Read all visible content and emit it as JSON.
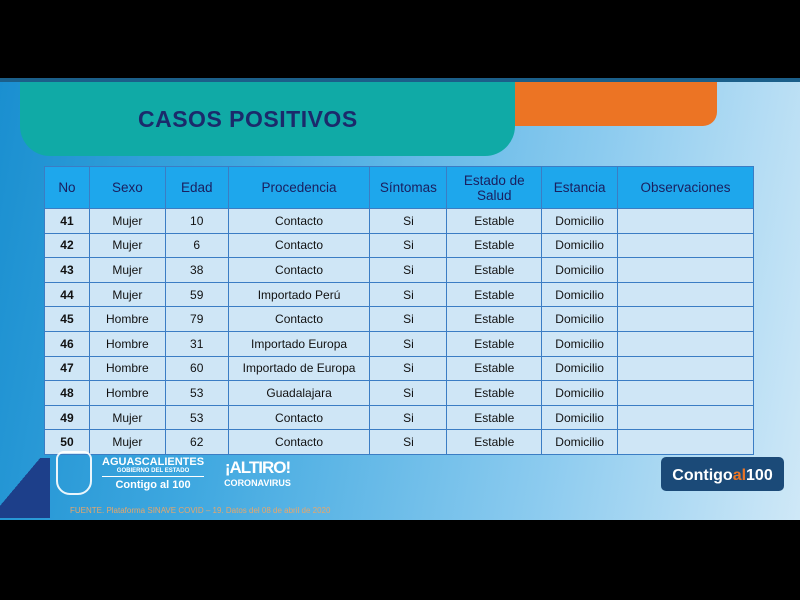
{
  "title": "CASOS POSITIVOS",
  "columns": [
    "No",
    "Sexo",
    "Edad",
    "Procedencia",
    "Síntomas",
    "Estado de Salud",
    "Estancia",
    "Observaciones"
  ],
  "rows": [
    [
      "41",
      "Mujer",
      "10",
      "Contacto",
      "Si",
      "Estable",
      "Domicilio",
      ""
    ],
    [
      "42",
      "Mujer",
      "6",
      "Contacto",
      "Si",
      "Estable",
      "Domicilio",
      ""
    ],
    [
      "43",
      "Mujer",
      "38",
      "Contacto",
      "Si",
      "Estable",
      "Domicilio",
      ""
    ],
    [
      "44",
      "Mujer",
      "59",
      "Importado Perú",
      "Si",
      "Estable",
      "Domicilio",
      ""
    ],
    [
      "45",
      "Hombre",
      "79",
      "Contacto",
      "Si",
      "Estable",
      "Domicilio",
      ""
    ],
    [
      "46",
      "Hombre",
      "31",
      "Importado Europa",
      "Si",
      "Estable",
      "Domicilio",
      ""
    ],
    [
      "47",
      "Hombre",
      "60",
      "Importado de Europa",
      "Si",
      "Estable",
      "Domicilio",
      ""
    ],
    [
      "48",
      "Hombre",
      "53",
      "Guadalajara",
      "Si",
      "Estable",
      "Domicilio",
      ""
    ],
    [
      "49",
      "Mujer",
      "53",
      "Contacto",
      "Si",
      "Estable",
      "Domicilio",
      ""
    ],
    [
      "50",
      "Mujer",
      "62",
      "Contacto",
      "Si",
      "Estable",
      "Domicilio",
      ""
    ]
  ],
  "logos": {
    "ags": "AGUASCALIENTES",
    "gob": "GOBIERNO DEL ESTADO",
    "contigo": "Contigo al 100",
    "altiro": "¡ALTIRO!",
    "corona": "CORONAVIRUS",
    "badge_a": "Contigo",
    "badge_b": "al",
    "badge_c": "100"
  },
  "footer": "FUENTE. Plataforma SINAVE COVID – 19. Datos del 08 de abril de 2020",
  "colors": {
    "teal": "#10aaa6",
    "orange": "#ec7424",
    "header": "#1ea7ec",
    "navy": "#1b2a6b"
  }
}
